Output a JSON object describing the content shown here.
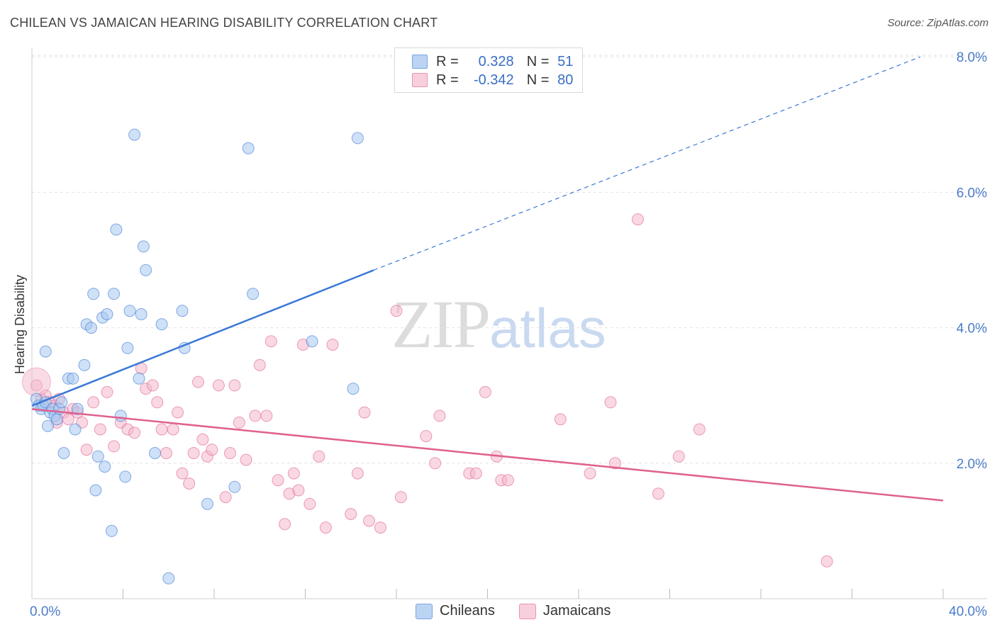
{
  "title": "CHILEAN VS JAMAICAN HEARING DISABILITY CORRELATION CHART",
  "source": "Source: ZipAtlas.com",
  "watermark": {
    "part1": "ZIP",
    "part2": "atlas"
  },
  "legend": {
    "rows": [
      {
        "r_label": "R =",
        "r_value": "0.328",
        "n_label": "N =",
        "n_value": "51",
        "color": "#a8c8f0"
      },
      {
        "r_label": "R =",
        "r_value": "-0.342",
        "n_label": "N =",
        "n_value": "80",
        "color": "#f4b8cc"
      }
    ]
  },
  "bottom_legend": {
    "series1": "Chileans",
    "series2": "Jamaicans"
  },
  "chart_data": {
    "type": "scatter",
    "title": "CHILEAN VS JAMAICAN HEARING DISABILITY CORRELATION CHART",
    "xlabel": "",
    "ylabel": "Hearing Disability",
    "xlim": [
      0,
      40
    ],
    "ylim": [
      0,
      8.0
    ],
    "x_tick_labels": [
      "0.0%",
      "40.0%"
    ],
    "y_ticks": [
      2.0,
      4.0,
      6.0,
      8.0
    ],
    "y_tick_labels": [
      "2.0%",
      "4.0%",
      "6.0%",
      "8.0%"
    ],
    "grid": true,
    "series": [
      {
        "name": "Chileans",
        "color": "#3a78d6",
        "fill": "#a8c8f0",
        "trend": {
          "x0": 0.0,
          "y0": 2.85,
          "x1": 15.0,
          "y1": 4.85,
          "dash_to_x": 39.0,
          "dash_to_y": 8.0
        },
        "points": [
          [
            0.2,
            2.95
          ],
          [
            0.3,
            2.85
          ],
          [
            0.4,
            2.8
          ],
          [
            0.5,
            2.85
          ],
          [
            0.6,
            2.9
          ],
          [
            0.7,
            2.55
          ],
          [
            0.8,
            2.75
          ],
          [
            0.9,
            2.8
          ],
          [
            1.0,
            2.7
          ],
          [
            1.1,
            2.65
          ],
          [
            1.2,
            2.8
          ],
          [
            1.3,
            2.9
          ],
          [
            1.4,
            2.15
          ],
          [
            1.6,
            3.25
          ],
          [
            1.8,
            3.25
          ],
          [
            1.9,
            2.5
          ],
          [
            2.0,
            2.8
          ],
          [
            2.4,
            4.05
          ],
          [
            2.6,
            4.0
          ],
          [
            2.7,
            4.5
          ],
          [
            2.9,
            2.1
          ],
          [
            3.1,
            4.15
          ],
          [
            3.3,
            4.2
          ],
          [
            3.5,
            1.0
          ],
          [
            3.6,
            4.5
          ],
          [
            3.7,
            5.45
          ],
          [
            3.9,
            2.7
          ],
          [
            4.1,
            1.8
          ],
          [
            4.2,
            3.7
          ],
          [
            4.3,
            4.25
          ],
          [
            4.5,
            6.85
          ],
          [
            4.7,
            3.25
          ],
          [
            4.8,
            4.2
          ],
          [
            4.9,
            5.2
          ],
          [
            5.0,
            4.85
          ],
          [
            5.4,
            2.15
          ],
          [
            5.7,
            4.05
          ],
          [
            6.0,
            0.3
          ],
          [
            6.6,
            4.25
          ],
          [
            6.7,
            3.7
          ],
          [
            7.7,
            1.4
          ],
          [
            8.9,
            1.65
          ],
          [
            9.5,
            6.65
          ],
          [
            9.7,
            4.5
          ],
          [
            12.3,
            3.8
          ],
          [
            14.1,
            3.1
          ],
          [
            14.3,
            6.8
          ],
          [
            0.6,
            3.65
          ],
          [
            2.3,
            3.45
          ],
          [
            2.8,
            1.6
          ],
          [
            3.2,
            1.95
          ]
        ]
      },
      {
        "name": "Jamaicans",
        "color": "#e0608e",
        "fill": "#f4b8cc",
        "trend": {
          "x0": 0.0,
          "y0": 2.8,
          "x1": 40.0,
          "y1": 1.45
        },
        "points": [
          [
            0.2,
            3.15
          ],
          [
            0.4,
            2.95
          ],
          [
            0.6,
            3.0
          ],
          [
            0.8,
            2.9
          ],
          [
            1.0,
            2.85
          ],
          [
            1.2,
            2.95
          ],
          [
            1.4,
            2.75
          ],
          [
            1.6,
            2.65
          ],
          [
            1.8,
            2.8
          ],
          [
            2.0,
            2.75
          ],
          [
            2.2,
            2.6
          ],
          [
            2.4,
            2.2
          ],
          [
            2.7,
            2.9
          ],
          [
            3.0,
            2.5
          ],
          [
            3.3,
            3.05
          ],
          [
            3.6,
            2.25
          ],
          [
            3.9,
            2.6
          ],
          [
            4.2,
            2.5
          ],
          [
            4.5,
            2.45
          ],
          [
            4.8,
            3.4
          ],
          [
            5.0,
            3.1
          ],
          [
            5.3,
            3.15
          ],
          [
            5.5,
            2.9
          ],
          [
            5.7,
            2.5
          ],
          [
            5.9,
            2.15
          ],
          [
            6.2,
            2.5
          ],
          [
            6.4,
            2.75
          ],
          [
            6.6,
            1.85
          ],
          [
            6.9,
            1.7
          ],
          [
            7.1,
            2.15
          ],
          [
            7.3,
            3.2
          ],
          [
            7.5,
            2.35
          ],
          [
            7.7,
            2.1
          ],
          [
            7.9,
            2.2
          ],
          [
            8.2,
            3.15
          ],
          [
            8.5,
            1.5
          ],
          [
            8.7,
            2.15
          ],
          [
            8.9,
            3.15
          ],
          [
            9.1,
            2.6
          ],
          [
            9.4,
            2.05
          ],
          [
            9.8,
            2.7
          ],
          [
            10.0,
            3.45
          ],
          [
            10.3,
            2.7
          ],
          [
            10.5,
            3.8
          ],
          [
            10.8,
            1.75
          ],
          [
            11.1,
            1.1
          ],
          [
            11.3,
            1.55
          ],
          [
            11.5,
            1.85
          ],
          [
            11.7,
            1.6
          ],
          [
            11.9,
            3.75
          ],
          [
            12.2,
            1.4
          ],
          [
            12.6,
            2.1
          ],
          [
            12.9,
            1.05
          ],
          [
            13.2,
            3.75
          ],
          [
            14.0,
            1.25
          ],
          [
            14.3,
            1.85
          ],
          [
            14.6,
            2.75
          ],
          [
            14.8,
            1.15
          ],
          [
            15.3,
            1.05
          ],
          [
            16.0,
            4.25
          ],
          [
            16.2,
            1.5
          ],
          [
            17.3,
            2.4
          ],
          [
            17.7,
            2.0
          ],
          [
            17.9,
            2.7
          ],
          [
            19.2,
            1.85
          ],
          [
            19.5,
            1.85
          ],
          [
            19.9,
            3.05
          ],
          [
            20.4,
            2.1
          ],
          [
            20.6,
            1.75
          ],
          [
            20.9,
            1.75
          ],
          [
            23.2,
            2.65
          ],
          [
            24.5,
            1.85
          ],
          [
            25.4,
            2.9
          ],
          [
            25.6,
            2.0
          ],
          [
            26.6,
            5.6
          ],
          [
            27.5,
            1.55
          ],
          [
            28.4,
            2.1
          ],
          [
            29.3,
            2.5
          ],
          [
            34.9,
            0.55
          ],
          [
            1.1,
            2.6
          ]
        ]
      }
    ]
  }
}
